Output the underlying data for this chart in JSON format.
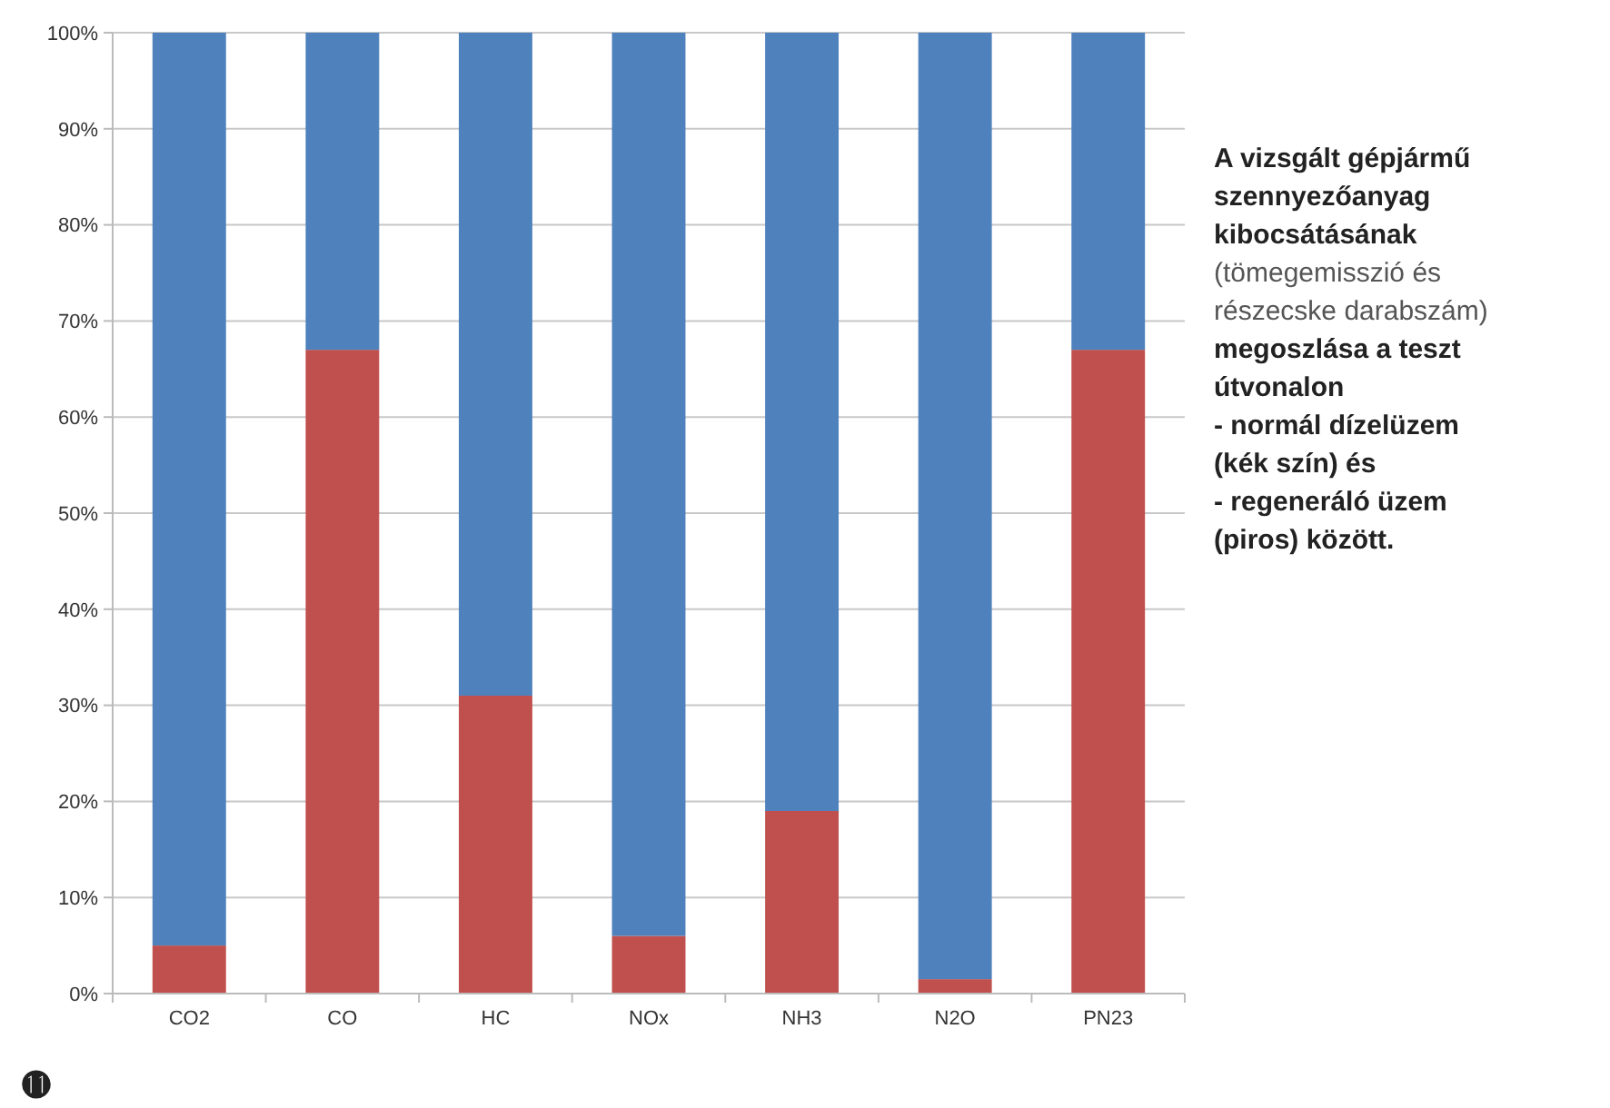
{
  "chart_data": {
    "type": "bar",
    "stacked": true,
    "title": "A vizsgált gépjármű\nszennyezőanyag\nkibocsátásának",
    "subtitle": "(tömegemisszió és\nrészecske darabszám)",
    "annotations": [
      "megoszlása a teszt\nútvonalon\n- normál dízelüzem\n(kék szín) és\n- regeneráló üzem\n(piros) között.",
      "⓫"
    ],
    "categories": [
      "CO2",
      "CO",
      "HC",
      "NOx",
      "NH3",
      "N2O",
      "PN23"
    ],
    "series": [
      {
        "color": "#c0504d",
        "values": [
          5,
          67,
          31,
          6,
          19,
          1.5,
          67
        ]
      },
      {
        "color": "#4f81bd",
        "values": [
          95,
          33,
          69,
          94,
          81,
          98.5,
          33
        ]
      }
    ],
    "ylim": [
      0,
      100
    ],
    "yticks": [
      {
        "value": 0,
        "label": "0%"
      },
      {
        "value": 10,
        "label": "10%"
      },
      {
        "value": 20,
        "label": "20%"
      },
      {
        "value": 30,
        "label": "30%"
      },
      {
        "value": 40,
        "label": "40%"
      },
      {
        "value": 50,
        "label": "50%"
      },
      {
        "value": 60,
        "label": "60%"
      },
      {
        "value": 70,
        "label": "70%"
      },
      {
        "value": 80,
        "label": "80%"
      },
      {
        "value": 90,
        "label": "90%"
      },
      {
        "value": 100,
        "label": "100%"
      }
    ],
    "grid": "y"
  }
}
